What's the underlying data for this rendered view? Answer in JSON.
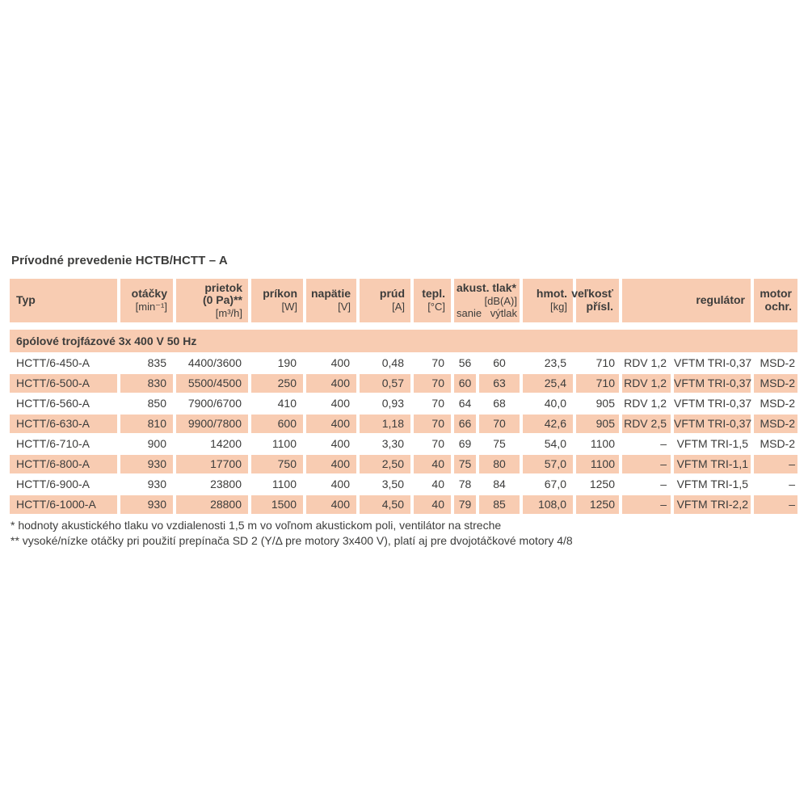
{
  "title": "Prívodné prevedenie HCTB/HCTT – A",
  "colors": {
    "salmon": "#f8ccb2",
    "text": "#3c3c3b"
  },
  "header": {
    "typ": {
      "label": "Typ"
    },
    "otacky": {
      "label": "otáčky",
      "unit": "[min⁻¹]"
    },
    "prietok": {
      "label": "prietok",
      "label2": "(0 Pa)**",
      "unit": "[m³/h]"
    },
    "prikon": {
      "label": "príkon",
      "unit": "[W]"
    },
    "napatie": {
      "label": "napätie",
      "unit": "[V]"
    },
    "prud": {
      "label": "prúd",
      "unit": "[A]"
    },
    "tepl": {
      "label": "tepl.",
      "unit": "[°C]"
    },
    "akust": {
      "label": "akust. tlak*",
      "unit": "[dB(A)]",
      "sub1": "sanie",
      "sub2": "výtlak"
    },
    "hmot": {
      "label": "hmot.",
      "unit": "[kg]"
    },
    "velkost": {
      "label": "veľkosť",
      "label2": "přísl."
    },
    "regulator": {
      "label": "regulátor"
    },
    "motor": {
      "label": "motor",
      "label2": "ochr."
    }
  },
  "section_header": "6pólové trojfázové 3x 400 V 50 Hz",
  "table": {
    "rows": [
      {
        "shaded": false,
        "cells": [
          "HCTT/6-450-A",
          "835",
          "4400/3600",
          "190",
          "400",
          "0,48",
          "70",
          "56",
          "60",
          "23,5",
          "710",
          "RDV 1,2",
          "VFTM TRI-0,37",
          "MSD-2"
        ]
      },
      {
        "shaded": true,
        "cells": [
          "HCTT/6-500-A",
          "830",
          "5500/4500",
          "250",
          "400",
          "0,57",
          "70",
          "60",
          "63",
          "25,4",
          "710",
          "RDV 1,2",
          "VFTM TRI-0,37",
          "MSD-2"
        ]
      },
      {
        "shaded": false,
        "cells": [
          "HCTT/6-560-A",
          "850",
          "7900/6700",
          "410",
          "400",
          "0,93",
          "70",
          "64",
          "68",
          "40,0",
          "905",
          "RDV 1,2",
          "VFTM TRI-0,37",
          "MSD-2"
        ]
      },
      {
        "shaded": true,
        "cells": [
          "HCTT/6-630-A",
          "810",
          "9900/7800",
          "600",
          "400",
          "1,18",
          "70",
          "66",
          "70",
          "42,6",
          "905",
          "RDV 2,5",
          "VFTM TRI-0,37",
          "MSD-2"
        ]
      },
      {
        "shaded": false,
        "cells": [
          "HCTT/6-710-A",
          "900",
          "14200",
          "1100",
          "400",
          "3,30",
          "70",
          "69",
          "75",
          "54,0",
          "1100",
          "–",
          "VFTM TRI-1,5",
          "MSD-2"
        ]
      },
      {
        "shaded": true,
        "cells": [
          "HCTT/6-800-A",
          "930",
          "17700",
          "750",
          "400",
          "2,50",
          "40",
          "75",
          "80",
          "57,0",
          "1100",
          "–",
          "VFTM TRI-1,1",
          "–"
        ]
      },
      {
        "shaded": false,
        "cells": [
          "HCTT/6-900-A",
          "930",
          "23800",
          "1100",
          "400",
          "3,50",
          "40",
          "78",
          "84",
          "67,0",
          "1250",
          "–",
          "VFTM TRI-1,5",
          "–"
        ]
      },
      {
        "shaded": true,
        "cells": [
          "HCTT/6-1000-A",
          "930",
          "28800",
          "1500",
          "400",
          "4,50",
          "40",
          "79",
          "85",
          "108,0",
          "1250",
          "–",
          "VFTM TRI-2,2",
          "–"
        ]
      }
    ]
  },
  "footnotes": [
    "* hodnoty akustického tlaku vo vzdialenosti 1,5 m vo voľnom akustickom poli, ventilátor na streche",
    "** vysoké/nízke otáčky pri použití prepínača SD 2 (Y/Δ pre motory 3x400 V), platí aj pre dvojotáčkové motory 4/8"
  ]
}
